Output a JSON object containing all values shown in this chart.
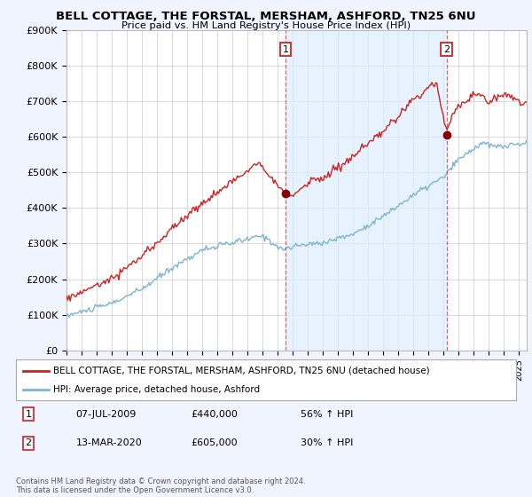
{
  "title": "BELL COTTAGE, THE FORSTAL, MERSHAM, ASHFORD, TN25 6NU",
  "subtitle": "Price paid vs. HM Land Registry's House Price Index (HPI)",
  "ylim": [
    0,
    900000
  ],
  "yticks": [
    0,
    100000,
    200000,
    300000,
    400000,
    500000,
    600000,
    700000,
    800000,
    900000
  ],
  "ytick_labels": [
    "£0",
    "£100K",
    "£200K",
    "£300K",
    "£400K",
    "£500K",
    "£600K",
    "£700K",
    "£800K",
    "£900K"
  ],
  "hpi_color": "#7fb3d3",
  "hpi_fill_color": "#dceeff",
  "price_color": "#cc2222",
  "sale1_date": 2009.52,
  "sale1_price": 440000,
  "sale1_label": "1",
  "sale2_date": 2020.19,
  "sale2_price": 605000,
  "sale2_label": "2",
  "legend_property": "BELL COTTAGE, THE FORSTAL, MERSHAM, ASHFORD, TN25 6NU (detached house)",
  "legend_hpi": "HPI: Average price, detached house, Ashford",
  "table_rows": [
    [
      "1",
      "07-JUL-2009",
      "£440,000",
      "56% ↑ HPI"
    ],
    [
      "2",
      "13-MAR-2020",
      "£605,000",
      "30% ↑ HPI"
    ]
  ],
  "footnote": "Contains HM Land Registry data © Crown copyright and database right 2024.\nThis data is licensed under the Open Government Licence v3.0.",
  "background_color": "#f0f4ff",
  "plot_bg_color": "#ffffff",
  "xmin": 1995.0,
  "xmax": 2025.5
}
